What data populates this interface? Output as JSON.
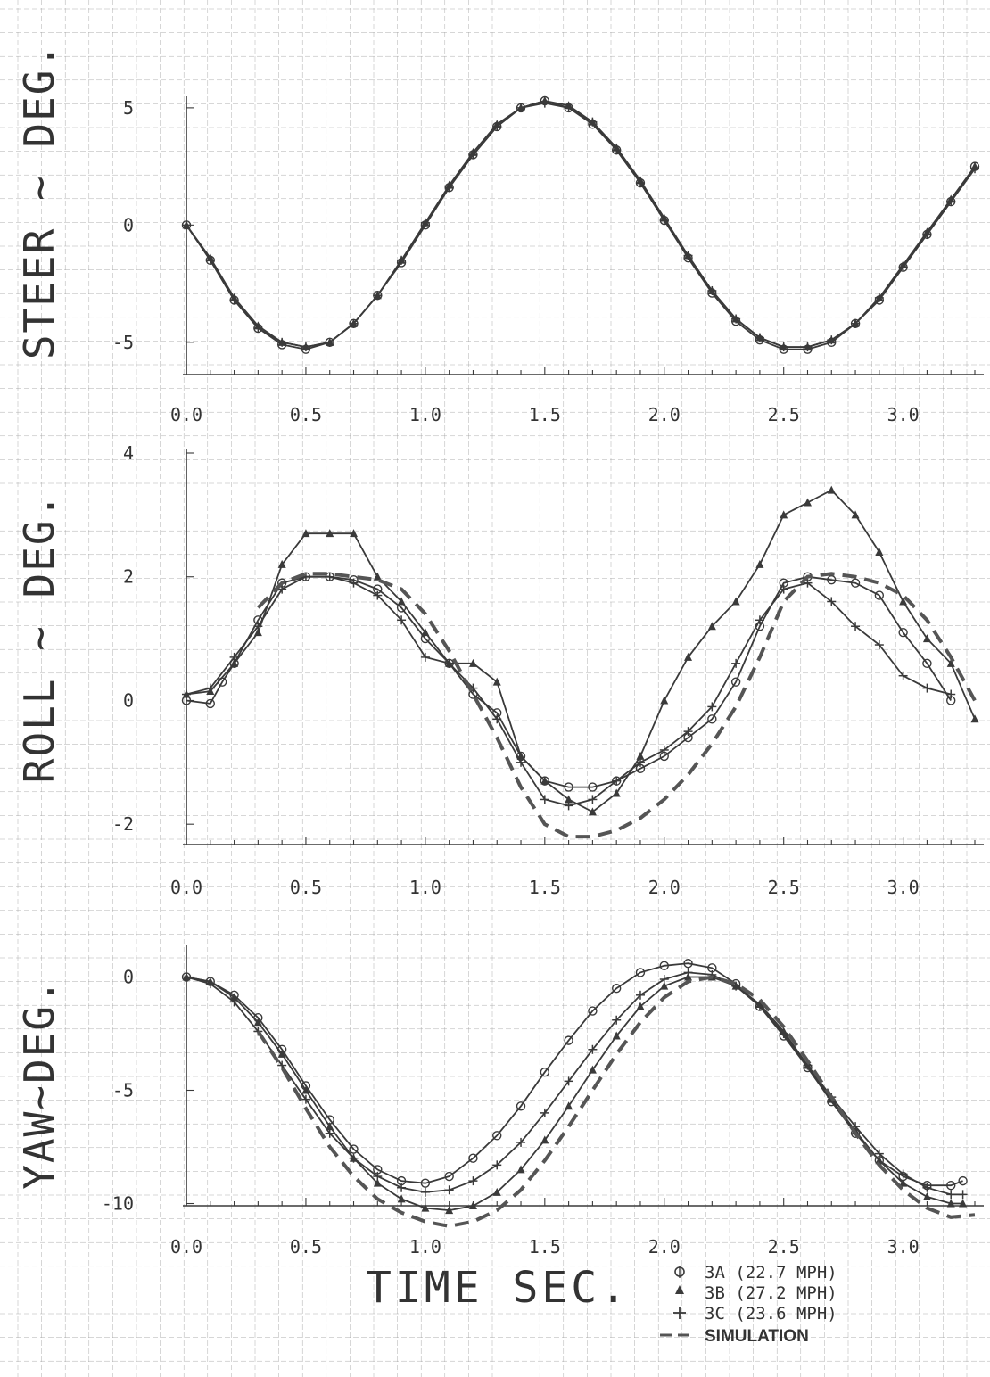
{
  "colors": {
    "ink": "#3a3a3a",
    "grid": "#9a9a9a",
    "sim": "#555555"
  },
  "x_label": "TIME SEC.",
  "x_ticks": [
    "0.0",
    "0.5",
    "1.0",
    "1.5",
    "2.0",
    "2.5",
    "3.0"
  ],
  "legend": [
    {
      "marker": "circle",
      "text": "3A (22.7 MPH)"
    },
    {
      "marker": "triangle",
      "text": "3B (27.2 MPH)"
    },
    {
      "marker": "plus",
      "text": "3C (23.6 MPH)"
    },
    {
      "marker": "dash",
      "text": "SIMULATION"
    }
  ],
  "chart_data": [
    {
      "type": "line",
      "ylabel": "STEER ~ DEG.",
      "xlim": [
        0,
        3.3
      ],
      "ylim": [
        -6.3,
        5.3
      ],
      "y_ticks": [
        {
          "value": 5,
          "label": "5"
        },
        {
          "value": 0,
          "label": "0"
        },
        {
          "value": -5,
          "label": "-5"
        }
      ],
      "series": [
        {
          "name": "3A (22.7 MPH)",
          "marker": "circle",
          "style": "solid",
          "x": [
            0,
            0.1,
            0.2,
            0.3,
            0.4,
            0.5,
            0.6,
            0.7,
            0.8,
            0.9,
            1.0,
            1.1,
            1.2,
            1.3,
            1.4,
            1.5,
            1.6,
            1.7,
            1.8,
            1.9,
            2.0,
            2.1,
            2.2,
            2.3,
            2.4,
            2.5,
            2.6,
            2.7,
            2.8,
            2.9,
            3.0,
            3.1,
            3.2,
            3.3
          ],
          "y": [
            0,
            -1.5,
            -3.2,
            -4.4,
            -5.1,
            -5.3,
            -5.0,
            -4.2,
            -3.0,
            -1.6,
            0,
            1.6,
            3.0,
            4.2,
            5.0,
            5.3,
            5.0,
            4.3,
            3.2,
            1.8,
            0.2,
            -1.4,
            -2.9,
            -4.1,
            -4.9,
            -5.3,
            -5.3,
            -5.0,
            -4.2,
            -3.2,
            -1.8,
            -0.4,
            1.0,
            2.5
          ]
        },
        {
          "name": "3B (27.2 MPH)",
          "marker": "triangle",
          "style": "solid",
          "x": [
            0,
            0.1,
            0.2,
            0.3,
            0.4,
            0.5,
            0.6,
            0.7,
            0.8,
            0.9,
            1.0,
            1.1,
            1.2,
            1.3,
            1.4,
            1.5,
            1.6,
            1.7,
            1.8,
            1.9,
            2.0,
            2.1,
            2.2,
            2.3,
            2.4,
            2.5,
            2.6,
            2.7,
            2.8,
            2.9,
            3.0,
            3.1,
            3.2,
            3.3
          ],
          "y": [
            0,
            -1.4,
            -3.1,
            -4.3,
            -5.0,
            -5.2,
            -5.0,
            -4.2,
            -3.0,
            -1.5,
            0.1,
            1.7,
            3.1,
            4.3,
            5.0,
            5.3,
            5.1,
            4.4,
            3.3,
            1.9,
            0.3,
            -1.3,
            -2.8,
            -4.0,
            -4.8,
            -5.2,
            -5.2,
            -4.9,
            -4.2,
            -3.1,
            -1.7,
            -0.3,
            1.1,
            2.5
          ]
        },
        {
          "name": "3C (23.6 MPH)",
          "marker": "plus",
          "style": "solid",
          "x": [
            0,
            0.1,
            0.2,
            0.3,
            0.4,
            0.5,
            0.6,
            0.7,
            0.8,
            0.9,
            1.0,
            1.1,
            1.2,
            1.3,
            1.4,
            1.5,
            1.6,
            1.7,
            1.8,
            1.9,
            2.0,
            2.1,
            2.2,
            2.3,
            2.4,
            2.5,
            2.6,
            2.7,
            2.8,
            2.9,
            3.0,
            3.1,
            3.2,
            3.3
          ],
          "y": [
            0,
            -1.5,
            -3.2,
            -4.4,
            -5.0,
            -5.2,
            -5.0,
            -4.2,
            -3.0,
            -1.5,
            0.1,
            1.6,
            3.0,
            4.2,
            5.0,
            5.2,
            5.0,
            4.4,
            3.2,
            1.8,
            0.2,
            -1.3,
            -2.8,
            -4.0,
            -4.8,
            -5.2,
            -5.2,
            -4.9,
            -4.2,
            -3.1,
            -1.8,
            -0.4,
            1.0,
            2.4
          ]
        }
      ]
    },
    {
      "type": "line",
      "ylabel": "ROLL ~ DEG.",
      "xlim": [
        0,
        3.3
      ],
      "ylim": [
        -2.3,
        4.0
      ],
      "y_ticks": [
        {
          "value": 4,
          "label": "4"
        },
        {
          "value": 2,
          "label": "2"
        },
        {
          "value": 0,
          "label": "0"
        },
        {
          "value": -2,
          "label": "-2"
        }
      ],
      "series": [
        {
          "name": "3A (22.7 MPH)",
          "marker": "circle",
          "style": "solid",
          "x": [
            0,
            0.1,
            0.15,
            0.2,
            0.3,
            0.4,
            0.5,
            0.6,
            0.7,
            0.8,
            0.9,
            1.0,
            1.1,
            1.2,
            1.3,
            1.4,
            1.5,
            1.6,
            1.7,
            1.8,
            1.9,
            2.0,
            2.1,
            2.2,
            2.3,
            2.4,
            2.5,
            2.6,
            2.7,
            2.8,
            2.9,
            3.0,
            3.1,
            3.2
          ],
          "y": [
            0.0,
            -0.05,
            0.3,
            0.6,
            1.3,
            1.9,
            2.0,
            2.0,
            1.95,
            1.8,
            1.5,
            1.0,
            0.6,
            0.1,
            -0.2,
            -0.9,
            -1.3,
            -1.4,
            -1.4,
            -1.3,
            -1.1,
            -0.9,
            -0.6,
            -0.3,
            0.3,
            1.2,
            1.9,
            2.0,
            1.95,
            1.9,
            1.7,
            1.1,
            0.6,
            0.0
          ]
        },
        {
          "name": "3B (27.2 MPH)",
          "marker": "triangle",
          "style": "solid",
          "x": [
            0,
            0.1,
            0.2,
            0.3,
            0.4,
            0.5,
            0.6,
            0.7,
            0.8,
            0.9,
            1.0,
            1.1,
            1.2,
            1.3,
            1.4,
            1.5,
            1.6,
            1.7,
            1.8,
            1.9,
            2.0,
            2.1,
            2.2,
            2.3,
            2.4,
            2.5,
            2.6,
            2.7,
            2.8,
            2.9,
            3.0,
            3.1,
            3.2,
            3.3
          ],
          "y": [
            0.1,
            0.15,
            0.6,
            1.1,
            2.2,
            2.7,
            2.7,
            2.7,
            2.0,
            1.6,
            1.1,
            0.6,
            0.6,
            0.3,
            -0.9,
            -1.3,
            -1.6,
            -1.8,
            -1.5,
            -0.9,
            0.0,
            0.7,
            1.2,
            1.6,
            2.2,
            3.0,
            3.2,
            3.4,
            3.0,
            2.4,
            1.6,
            1.0,
            0.6,
            -0.3
          ]
        },
        {
          "name": "3C (23.6 MPH)",
          "marker": "plus",
          "style": "solid",
          "x": [
            0,
            0.1,
            0.2,
            0.3,
            0.4,
            0.5,
            0.6,
            0.7,
            0.8,
            0.9,
            1.0,
            1.1,
            1.2,
            1.3,
            1.4,
            1.5,
            1.6,
            1.7,
            1.8,
            1.9,
            2.0,
            2.1,
            2.2,
            2.3,
            2.4,
            2.5,
            2.6,
            2.7,
            2.8,
            2.9,
            3.0,
            3.1,
            3.2
          ],
          "y": [
            0.1,
            0.2,
            0.7,
            1.2,
            1.8,
            2.0,
            2.0,
            1.9,
            1.7,
            1.3,
            0.7,
            0.6,
            0.2,
            -0.3,
            -1.0,
            -1.6,
            -1.7,
            -1.6,
            -1.3,
            -1.0,
            -0.8,
            -0.5,
            -0.1,
            0.6,
            1.3,
            1.8,
            1.9,
            1.6,
            1.2,
            0.9,
            0.4,
            0.2,
            0.1
          ]
        },
        {
          "name": "SIMULATION",
          "marker": "none",
          "style": "dash",
          "x": [
            0.3,
            0.4,
            0.5,
            0.6,
            0.7,
            0.8,
            0.9,
            1.0,
            1.1,
            1.2,
            1.3,
            1.4,
            1.5,
            1.6,
            1.7,
            1.8,
            1.9,
            2.0,
            2.1,
            2.2,
            2.3,
            2.4,
            2.5,
            2.6,
            2.7,
            2.8,
            2.9,
            3.0,
            3.1,
            3.2,
            3.3
          ],
          "y": [
            1.5,
            1.9,
            2.05,
            2.05,
            2.0,
            1.95,
            1.8,
            1.4,
            0.8,
            0.1,
            -0.6,
            -1.4,
            -2.0,
            -2.2,
            -2.2,
            -2.1,
            -1.9,
            -1.6,
            -1.2,
            -0.7,
            -0.1,
            0.7,
            1.6,
            2.0,
            2.05,
            2.0,
            1.9,
            1.7,
            1.3,
            0.7,
            0.0
          ]
        }
      ]
    },
    {
      "type": "line",
      "ylabel": "YAW~DEG.",
      "xlim": [
        0,
        3.3
      ],
      "ylim": [
        -11.2,
        1.2
      ],
      "y_ticks": [
        {
          "value": 0,
          "label": "0"
        },
        {
          "value": -5,
          "label": "-5"
        },
        {
          "value": -10,
          "label": "-10"
        }
      ],
      "series": [
        {
          "name": "3A (22.7 MPH)",
          "marker": "circle",
          "style": "solid",
          "x": [
            0,
            0.1,
            0.2,
            0.3,
            0.4,
            0.5,
            0.6,
            0.7,
            0.8,
            0.9,
            1.0,
            1.1,
            1.2,
            1.3,
            1.4,
            1.5,
            1.6,
            1.7,
            1.8,
            1.9,
            2.0,
            2.1,
            2.2,
            2.3,
            2.4,
            2.5,
            2.6,
            2.7,
            2.8,
            2.9,
            3.0,
            3.1,
            3.2,
            3.25
          ],
          "y": [
            0,
            -0.2,
            -0.8,
            -1.8,
            -3.2,
            -4.8,
            -6.3,
            -7.6,
            -8.5,
            -9.0,
            -9.1,
            -8.8,
            -8.0,
            -7.0,
            -5.7,
            -4.2,
            -2.8,
            -1.5,
            -0.5,
            0.2,
            0.5,
            0.6,
            0.4,
            -0.3,
            -1.3,
            -2.6,
            -4.0,
            -5.5,
            -6.9,
            -8.1,
            -8.8,
            -9.2,
            -9.2,
            -9.0
          ]
        },
        {
          "name": "3B (27.2 MPH)",
          "marker": "triangle",
          "style": "solid",
          "x": [
            0,
            0.1,
            0.2,
            0.3,
            0.4,
            0.5,
            0.6,
            0.7,
            0.8,
            0.9,
            1.0,
            1.1,
            1.2,
            1.3,
            1.4,
            1.5,
            1.6,
            1.7,
            1.8,
            1.9,
            2.0,
            2.1,
            2.2,
            2.3,
            2.4,
            2.5,
            2.6,
            2.7,
            2.8,
            2.9,
            3.0,
            3.1,
            3.2,
            3.25
          ],
          "y": [
            0,
            -0.2,
            -0.9,
            -2.0,
            -3.4,
            -5.0,
            -6.6,
            -8.0,
            -9.1,
            -9.8,
            -10.2,
            -10.3,
            -10.1,
            -9.5,
            -8.5,
            -7.2,
            -5.7,
            -4.1,
            -2.6,
            -1.3,
            -0.4,
            0.0,
            0.0,
            -0.4,
            -1.2,
            -2.4,
            -3.9,
            -5.4,
            -6.8,
            -8.1,
            -9.1,
            -9.7,
            -10.0,
            -10.0
          ]
        },
        {
          "name": "3C (23.6 MPH)",
          "marker": "plus",
          "style": "solid",
          "x": [
            0,
            0.1,
            0.2,
            0.3,
            0.4,
            0.5,
            0.6,
            0.7,
            0.8,
            0.9,
            1.0,
            1.1,
            1.2,
            1.3,
            1.4,
            1.5,
            1.6,
            1.7,
            1.8,
            1.9,
            2.0,
            2.1,
            2.2,
            2.3,
            2.4,
            2.5,
            2.6,
            2.7,
            2.8,
            2.9,
            3.0,
            3.1,
            3.2,
            3.25
          ],
          "y": [
            0,
            -0.3,
            -1.1,
            -2.4,
            -3.9,
            -5.4,
            -6.9,
            -8.0,
            -8.8,
            -9.3,
            -9.5,
            -9.4,
            -9.0,
            -8.3,
            -7.3,
            -6.0,
            -4.6,
            -3.2,
            -1.9,
            -0.8,
            -0.1,
            0.2,
            0.1,
            -0.4,
            -1.3,
            -2.5,
            -3.9,
            -5.3,
            -6.6,
            -7.8,
            -8.7,
            -9.3,
            -9.6,
            -9.6
          ]
        },
        {
          "name": "SIMULATION",
          "marker": "none",
          "style": "dash",
          "x": [
            0.3,
            0.4,
            0.5,
            0.6,
            0.7,
            0.8,
            0.9,
            1.0,
            1.1,
            1.2,
            1.3,
            1.4,
            1.5,
            1.6,
            1.7,
            1.8,
            1.9,
            2.0,
            2.1,
            2.2,
            2.3,
            2.4,
            2.5,
            2.6,
            2.7,
            2.8,
            2.9,
            3.0,
            3.1,
            3.2,
            3.3
          ],
          "y": [
            -2.4,
            -4.0,
            -5.8,
            -7.5,
            -8.8,
            -9.8,
            -10.4,
            -10.8,
            -11.0,
            -10.8,
            -10.3,
            -9.4,
            -8.1,
            -6.6,
            -5.0,
            -3.4,
            -2.0,
            -0.9,
            -0.2,
            0.0,
            -0.3,
            -1.0,
            -2.2,
            -3.7,
            -5.3,
            -6.9,
            -8.3,
            -9.4,
            -10.2,
            -10.6,
            -10.5
          ]
        }
      ]
    }
  ]
}
